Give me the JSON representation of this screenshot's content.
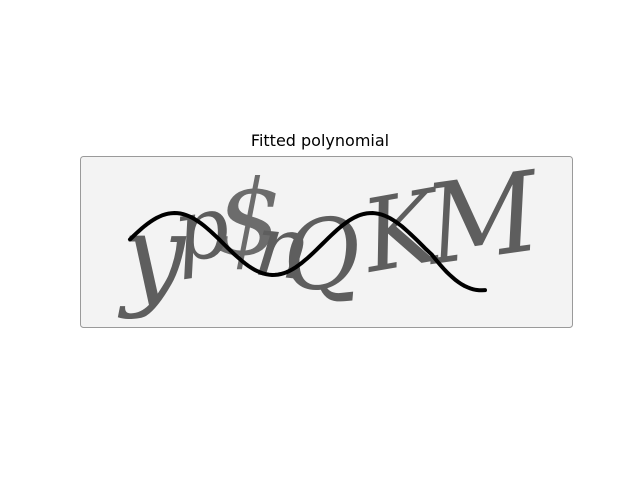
{
  "figure": {
    "title": "Fitted polynomial"
  },
  "captcha": {
    "characters": [
      "y",
      "p",
      "$",
      "n",
      "Q",
      "K",
      "M"
    ],
    "background_color": "#f2f2f2",
    "glyph_color": "#5e5e5e",
    "curve_color": "#000000"
  }
}
